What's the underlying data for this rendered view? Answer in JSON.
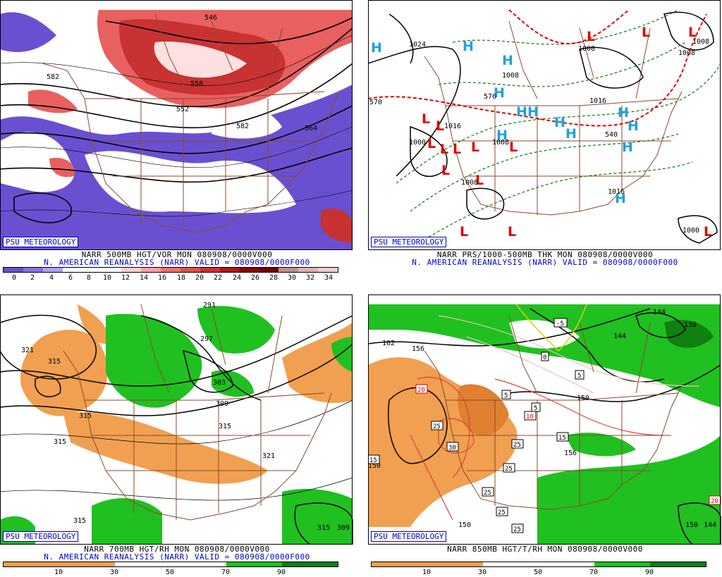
{
  "badge": "PSU METEOROLOGY",
  "colors": {
    "vort_pos": "#c83232",
    "vort_neg": "#6a50d0",
    "rh_dry": "#f0a050",
    "rh_wet": "#20c020",
    "high": "#20a0e0",
    "low": "#e00000",
    "states": "#8b4a2a"
  },
  "panels": [
    {
      "id": "vort500",
      "title1": "NARR 500MB HGT/VOR MON 080908/0000V000",
      "title2": "N. AMERICAN REANALYSIS (NARR) VALID = 080908/0000F000",
      "colorbar_ticks": [
        "0",
        "2",
        "4",
        "6",
        "8",
        "10",
        "12",
        "14",
        "16",
        "18",
        "20",
        "22",
        "24",
        "26",
        "28",
        "30",
        "32",
        "34"
      ],
      "contour_labels": [
        "546",
        "582",
        "558",
        "582",
        "564",
        "552"
      ]
    },
    {
      "id": "thk",
      "title1": "NARR PRS/1000-500MB THK MON 080908/0000V000",
      "title2": "N. AMERICAN REANALYSIS (NARR) VALID = 080908/0000F000",
      "contour_labels": [
        "1024",
        "576",
        "1008",
        "1016",
        "1008",
        "1008",
        "1000",
        "1008",
        "1016",
        "1016",
        "1008",
        "540",
        "570",
        "1000",
        "1008"
      ]
    },
    {
      "id": "rh700",
      "title1": "NARR 700MB HGT/RH MON 080908/0000V000",
      "title2": "N. AMERICAN REANALYSIS (NARR) VALID = 080908/0000F000",
      "colorbar_ticks": [
        "10",
        "30",
        "50",
        "70",
        "90"
      ],
      "contour_labels": [
        "291",
        "321",
        "315",
        "297",
        "303",
        "309",
        "315",
        "315",
        "315",
        "321",
        "315",
        "309",
        "315"
      ]
    },
    {
      "id": "rh850",
      "title1": "NARR 850MB HGT/T/RH MON 080908/0000V000",
      "colorbar_ticks": [
        "10",
        "30",
        "50",
        "70",
        "90"
      ],
      "contour_labels": [
        "162",
        "156",
        "144",
        "138",
        "144",
        "150",
        "156",
        "150",
        "150",
        "150",
        "144"
      ],
      "temp_labels": [
        "-5",
        "0",
        "5",
        "5",
        "5",
        "10",
        "15",
        "20",
        "25",
        "30",
        "25",
        "25",
        "25",
        "25",
        "25",
        "15",
        "20"
      ]
    }
  ]
}
